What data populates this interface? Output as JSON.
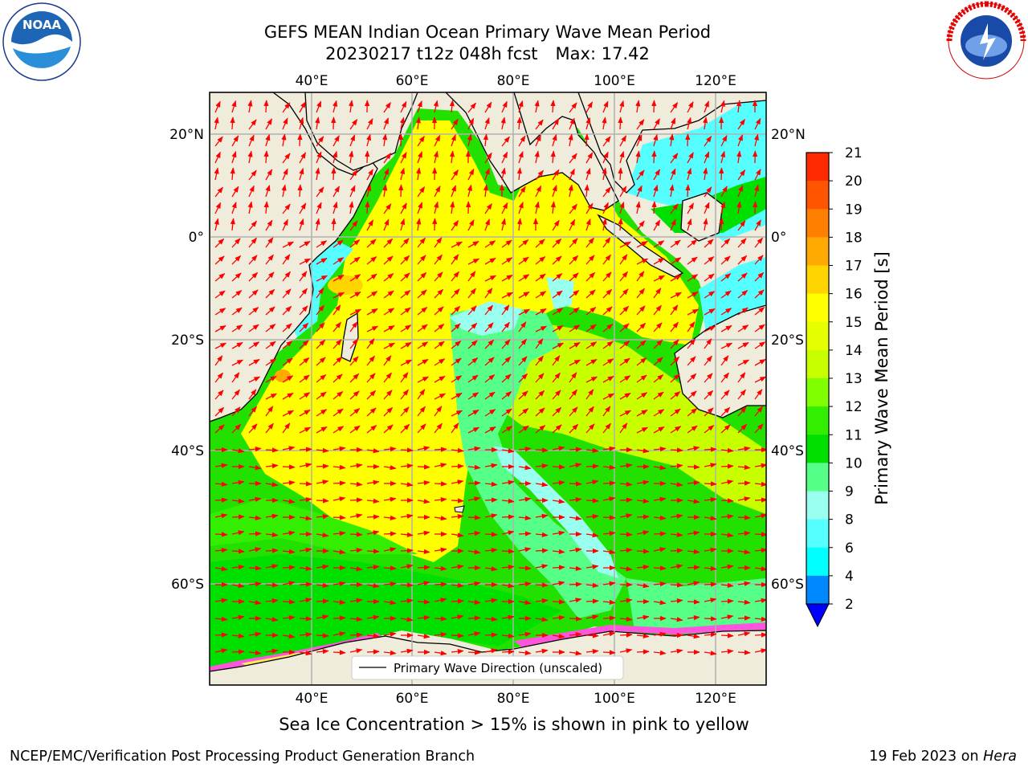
{
  "title": {
    "line1": "GEFS MEAN Indian Ocean Primary Wave Mean Period",
    "line2_date": "20230217 t12z 048h fcst",
    "line2_max": "Max: 17.42"
  },
  "logos": {
    "left": {
      "icon": "noaa-logo",
      "text": "NOAA",
      "ring_text": "NATIONAL OCEANIC AND ATMOSPHERIC ADMINISTRATION · U.S. DEPARTMENT OF COMMERCE"
    },
    "right": {
      "icon": "nws-logo",
      "ring_text": "NATIONAL WEATHER SERVICE"
    }
  },
  "map": {
    "lon_ticks_top": [
      "40°E",
      "60°E",
      "80°E",
      "100°E",
      "120°E"
    ],
    "lon_ticks_bottom": [
      "40°E",
      "60°E",
      "80°E",
      "100°E",
      "120°E"
    ],
    "lat_ticks_left": [
      "20°N",
      "0°",
      "20°S",
      "40°S",
      "60°S"
    ],
    "lat_ticks_right": [
      "20°N",
      "0°",
      "20°S",
      "40°S",
      "60°S"
    ],
    "legend_label": "Primary Wave Direction (unscaled)",
    "grid": true,
    "colors": {
      "land": "#efecdc",
      "arrow": "#ff0000",
      "grid": "#b0b0b0"
    }
  },
  "colorbar": {
    "label": "Primary Wave Mean Period [s]",
    "ticks": [
      "21",
      "20",
      "19",
      "18",
      "17",
      "16",
      "15",
      "14",
      "13",
      "12",
      "11",
      "10",
      "9",
      "8",
      "6",
      "4",
      "2"
    ],
    "colors": [
      "#ff0000",
      "#ff2a00",
      "#ff5500",
      "#ff8000",
      "#ffaa00",
      "#ffd400",
      "#ffff00",
      "#e5ff00",
      "#c8ff00",
      "#80ff00",
      "#33ee00",
      "#00e000",
      "#55ff88",
      "#99ffee",
      "#55ffff",
      "#00ffff",
      "#0088ff",
      "#0033ff"
    ],
    "extend_color": "#0000ff"
  },
  "subtitle": "Sea Ice Concentration > 15% is shown in pink to yellow",
  "footer": {
    "left": "NCEP/EMC/Verification Post Processing Product Generation Branch",
    "right_date": "19 Feb 2023 on",
    "right_host": "Hera"
  }
}
